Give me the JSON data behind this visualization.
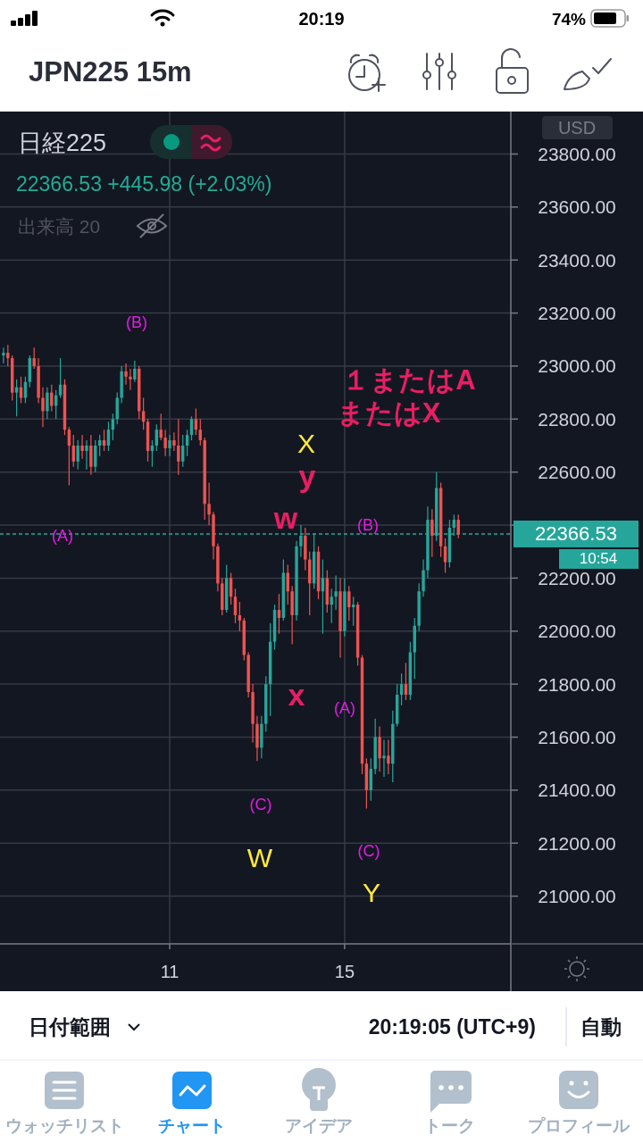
{
  "chart_data": {
    "type": "candlestick",
    "title": "JPN225 15m",
    "subtitle": "日経225",
    "x": [
      7.2,
      7.3,
      7.4,
      7.5,
      7.6,
      7.7,
      7.8,
      7.9,
      8,
      8.1,
      8.2,
      8.3,
      8.4,
      8.5,
      8.6,
      8.7,
      8.8,
      8.9,
      9,
      9.1,
      9.2,
      9.3,
      9.4,
      9.5,
      9.6,
      9.7,
      9.8,
      9.9,
      10,
      10.1,
      10.2,
      10.3,
      10.4,
      10.5,
      10.6,
      10.7,
      10.8,
      10.9,
      11,
      11.1,
      11.2,
      11.3,
      11.4,
      11.5,
      11.6,
      11.7,
      11.8,
      11.9,
      12,
      12.1,
      12.2,
      12.3,
      12.4,
      12.5,
      12.6,
      12.7,
      12.8,
      12.9,
      13,
      13.1,
      13.2,
      13.3,
      13.4,
      13.5,
      13.6,
      13.7,
      13.8,
      13.9,
      14,
      14.1,
      14.2,
      14.3,
      14.4,
      14.5,
      14.6,
      14.7,
      14.8,
      14.9,
      15,
      15.1,
      15.2,
      15.3,
      15.4,
      15.5,
      15.6,
      15.7,
      15.8,
      15.9,
      16,
      16.1,
      16.2,
      16.3,
      16.4,
      16.5,
      16.6,
      16.7,
      16.8,
      16.9,
      17,
      17.1,
      17.2,
      17.3,
      17.4,
      17.5,
      17.6
    ],
    "ohlc": [
      [
        23040,
        23070,
        23010,
        23050
      ],
      [
        23050,
        23080,
        23000,
        23030
      ],
      [
        23030,
        23040,
        22870,
        22900
      ],
      [
        22900,
        22950,
        22810,
        22920
      ],
      [
        22920,
        22960,
        22860,
        22880
      ],
      [
        22880,
        22960,
        22860,
        22940
      ],
      [
        22940,
        23040,
        22920,
        23030
      ],
      [
        23030,
        23070,
        22990,
        23000
      ],
      [
        23000,
        23030,
        22860,
        22880
      ],
      [
        22880,
        22920,
        22770,
        22830
      ],
      [
        22830,
        22920,
        22800,
        22900
      ],
      [
        22900,
        22930,
        22830,
        22850
      ],
      [
        22850,
        22910,
        22800,
        22890
      ],
      [
        22890,
        23030,
        22880,
        22930
      ],
      [
        22930,
        22950,
        22740,
        22760
      ],
      [
        22760,
        22770,
        22550,
        22700
      ],
      [
        22700,
        22740,
        22620,
        22640
      ],
      [
        22640,
        22720,
        22610,
        22700
      ],
      [
        22700,
        22740,
        22650,
        22680
      ],
      [
        22680,
        22720,
        22610,
        22700
      ],
      [
        22700,
        22740,
        22590,
        22620
      ],
      [
        22620,
        22720,
        22600,
        22700
      ],
      [
        22700,
        22740,
        22660,
        22720
      ],
      [
        22720,
        22760,
        22680,
        22700
      ],
      [
        22700,
        22790,
        22680,
        22760
      ],
      [
        22760,
        22820,
        22720,
        22800
      ],
      [
        22800,
        22900,
        22780,
        22880
      ],
      [
        22880,
        23000,
        22860,
        22980
      ],
      [
        22980,
        23010,
        22930,
        22960
      ],
      [
        22960,
        22990,
        22910,
        22950
      ],
      [
        22950,
        23020,
        22940,
        22990
      ],
      [
        22990,
        23000,
        22800,
        22830
      ],
      [
        22830,
        22880,
        22760,
        22790
      ],
      [
        22790,
        22800,
        22640,
        22680
      ],
      [
        22680,
        22720,
        22620,
        22700
      ],
      [
        22700,
        22780,
        22680,
        22760
      ],
      [
        22760,
        22820,
        22720,
        22730
      ],
      [
        22730,
        22760,
        22660,
        22690
      ],
      [
        22690,
        22740,
        22660,
        22720
      ],
      [
        22720,
        22750,
        22680,
        22700
      ],
      [
        22700,
        22800,
        22590,
        22640
      ],
      [
        22640,
        22740,
        22620,
        22700
      ],
      [
        22700,
        22760,
        22660,
        22740
      ],
      [
        22740,
        22810,
        22720,
        22800
      ],
      [
        22800,
        22840,
        22740,
        22760
      ],
      [
        22760,
        22800,
        22700,
        22720
      ],
      [
        22720,
        22730,
        22420,
        22480
      ],
      [
        22480,
        22560,
        22400,
        22440
      ],
      [
        22440,
        22450,
        22270,
        22320
      ],
      [
        22320,
        22330,
        22150,
        22180
      ],
      [
        22180,
        22200,
        22060,
        22080
      ],
      [
        22080,
        22250,
        22070,
        22200
      ],
      [
        22200,
        22220,
        22100,
        22130
      ],
      [
        22130,
        22160,
        22030,
        22060
      ],
      [
        22060,
        22110,
        22000,
        22040
      ],
      [
        22040,
        22050,
        21890,
        21910
      ],
      [
        21910,
        21920,
        21750,
        21770
      ],
      [
        21770,
        21800,
        21580,
        21650
      ],
      [
        21650,
        21680,
        21510,
        21560
      ],
      [
        21560,
        21680,
        21520,
        21650
      ],
      [
        21650,
        21830,
        21620,
        21800
      ],
      [
        21800,
        22030,
        21680,
        21960
      ],
      [
        21960,
        22100,
        21930,
        22080
      ],
      [
        22080,
        22140,
        21990,
        22050
      ],
      [
        22050,
        22270,
        22040,
        22220
      ],
      [
        22220,
        22250,
        22100,
        22150
      ],
      [
        22150,
        22170,
        21950,
        22060
      ],
      [
        22060,
        22340,
        22040,
        22320
      ],
      [
        22320,
        22400,
        22280,
        22360
      ],
      [
        22360,
        22390,
        22230,
        22270
      ],
      [
        22270,
        22300,
        22060,
        22180
      ],
      [
        22180,
        22370,
        22160,
        22300
      ],
      [
        22300,
        22320,
        22120,
        22150
      ],
      [
        22150,
        22270,
        21990,
        22200
      ],
      [
        22200,
        22230,
        22070,
        22100
      ],
      [
        22100,
        22160,
        22030,
        22130
      ],
      [
        22130,
        22210,
        22080,
        22150
      ],
      [
        22150,
        22200,
        21900,
        22000
      ],
      [
        22000,
        22200,
        21980,
        22150
      ],
      [
        22150,
        22170,
        22040,
        22090
      ],
      [
        22090,
        22130,
        22020,
        22100
      ],
      [
        22100,
        22110,
        21870,
        21900
      ],
      [
        21900,
        21910,
        21460,
        21500
      ],
      [
        21500,
        21520,
        21330,
        21400
      ],
      [
        21400,
        21520,
        21360,
        21480
      ],
      [
        21480,
        21670,
        21460,
        21600
      ],
      [
        21600,
        21640,
        21470,
        21520
      ],
      [
        21520,
        21590,
        21450,
        21530
      ],
      [
        21530,
        21590,
        21460,
        21500
      ],
      [
        21500,
        21700,
        21430,
        21650
      ],
      [
        21650,
        21800,
        21640,
        21760
      ],
      [
        21760,
        21840,
        21720,
        21800
      ],
      [
        21800,
        21880,
        21740,
        21760
      ],
      [
        21760,
        21960,
        21740,
        21920
      ],
      [
        21920,
        22050,
        21820,
        22020
      ],
      [
        22020,
        22180,
        22000,
        22150
      ],
      [
        22150,
        22270,
        22130,
        22230
      ],
      [
        22230,
        22470,
        22200,
        22420
      ],
      [
        22420,
        22460,
        22280,
        22360
      ],
      [
        22360,
        22600,
        22340,
        22540
      ],
      [
        22540,
        22560,
        22280,
        22320
      ],
      [
        22320,
        22350,
        22220,
        22260
      ],
      [
        22260,
        22420,
        22240,
        22390
      ],
      [
        22390,
        22440,
        22360,
        22420
      ],
      [
        22420,
        22440,
        22350,
        22366.53
      ]
    ],
    "colors": [
      "#26a69a",
      "#ef5350",
      "#ef5350",
      "#26a69a",
      "#ef5350",
      "#26a69a",
      "#26a69a",
      "#ef5350",
      "#ef5350",
      "#ef5350",
      "#26a69a",
      "#ef5350",
      "#26a69a",
      "#26a69a",
      "#ef5350",
      "#ef5350",
      "#ef5350",
      "#26a69a",
      "#ef5350",
      "#26a69a",
      "#ef5350",
      "#26a69a",
      "#26a69a",
      "#ef5350",
      "#26a69a",
      "#26a69a",
      "#26a69a",
      "#26a69a",
      "#ef5350",
      "#ef5350",
      "#26a69a",
      "#ef5350",
      "#ef5350",
      "#ef5350",
      "#26a69a",
      "#26a69a",
      "#ef5350",
      "#ef5350",
      "#26a69a",
      "#ef5350",
      "#ef5350",
      "#26a69a",
      "#26a69a",
      "#26a69a",
      "#ef5350",
      "#ef5350",
      "#ef5350",
      "#ef5350",
      "#ef5350",
      "#ef5350",
      "#ef5350",
      "#26a69a",
      "#ef5350",
      "#ef5350",
      "#ef5350",
      "#ef5350",
      "#ef5350",
      "#ef5350",
      "#ef5350",
      "#26a69a",
      "#26a69a",
      "#26a69a",
      "#26a69a",
      "#ef5350",
      "#26a69a",
      "#ef5350",
      "#ef5350",
      "#26a69a",
      "#26a69a",
      "#ef5350",
      "#ef5350",
      "#26a69a",
      "#ef5350",
      "#26a69a",
      "#ef5350",
      "#26a69a",
      "#26a69a",
      "#ef5350",
      "#26a69a",
      "#ef5350",
      "#26a69a",
      "#ef5350",
      "#ef5350",
      "#ef5350",
      "#26a69a",
      "#26a69a",
      "#ef5350",
      "#26a69a",
      "#ef5350",
      "#26a69a",
      "#26a69a",
      "#26a69a",
      "#ef5350",
      "#26a69a",
      "#26a69a",
      "#26a69a",
      "#26a69a",
      "#26a69a",
      "#ef5350",
      "#26a69a",
      "#ef5350",
      "#ef5350",
      "#26a69a",
      "#26a69a",
      "#ef5350"
    ],
    "xlim": [
      7.12,
      18.8
    ],
    "xticks": [
      11,
      15
    ],
    "ylim": [
      20820,
      23960
    ],
    "yticks": [
      {
        "value": 21000,
        "label": "21000.00"
      },
      {
        "value": 21200,
        "label": "21200.00"
      },
      {
        "value": 21400,
        "label": "21400.00"
      },
      {
        "value": 21600,
        "label": "21600.00"
      },
      {
        "value": 21800,
        "label": "21800.00"
      },
      {
        "value": 22000,
        "label": "22000.00"
      },
      {
        "value": 22200,
        "label": "22200.00"
      },
      {
        "value": 22400,
        "label": null
      },
      {
        "value": 22600,
        "label": "22600.00"
      },
      {
        "value": 22800,
        "label": "22800.00"
      },
      {
        "value": 23000,
        "label": "23000.00"
      },
      {
        "value": 23200,
        "label": "23200.00"
      },
      {
        "value": 23400,
        "label": "23400.00"
      },
      {
        "value": 23600,
        "label": "23600.00"
      },
      {
        "value": 23800,
        "label": "23800.00"
      }
    ],
    "grid": true,
    "ref_lines": [
      {
        "axis": "y",
        "value": 22366.53,
        "label": "22366.53",
        "color": "#26a69a",
        "line_style": "dashed"
      }
    ],
    "annotations": [
      "20:19",
      "74%",
      "22366.53  +445.98 (+2.03%)",
      "出来高 20",
      "USD",
      "10:54",
      "日付範囲",
      "20:19:05 (UTC+9)",
      "自動",
      "ウォッチリスト",
      "チャート",
      "アイデア",
      "トーク",
      "プロフィール",
      "(A)",
      "(B)",
      "(C)",
      "W",
      "x",
      "w",
      "y",
      "X",
      "(A)",
      "(B)",
      "(C)",
      "Y",
      "１またはA",
      "またはX"
    ]
  }
}
